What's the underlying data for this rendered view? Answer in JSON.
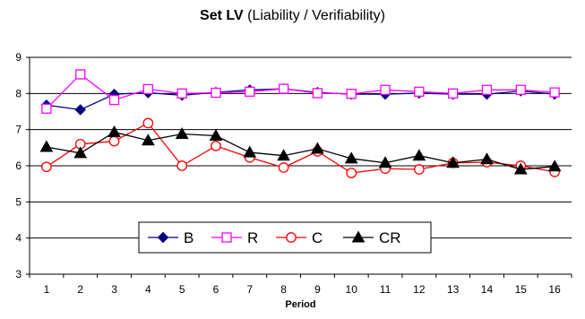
{
  "chart_data": {
    "type": "line",
    "title": "Set LV",
    "subtitle": "(Liability / Verifiability)",
    "xlabel": "Period",
    "ylabel": "",
    "x": [
      1,
      2,
      3,
      4,
      5,
      6,
      7,
      8,
      9,
      10,
      11,
      12,
      13,
      14,
      15,
      16
    ],
    "ylim": [
      3,
      9
    ],
    "yticks": [
      3,
      4,
      5,
      6,
      7,
      8,
      9
    ],
    "grid": "horizontal",
    "legend_position": "bottom-center",
    "series": [
      {
        "name": "B",
        "color": "#000080",
        "marker": "diamond-filled",
        "values": [
          7.68,
          7.55,
          7.98,
          8.02,
          7.95,
          8.03,
          8.1,
          8.13,
          8.03,
          7.98,
          7.98,
          8.01,
          7.98,
          7.98,
          8.07,
          7.98
        ]
      },
      {
        "name": "R",
        "color": "#ff00ff",
        "marker": "square-open",
        "values": [
          7.58,
          8.53,
          7.82,
          8.12,
          8.0,
          8.02,
          8.05,
          8.13,
          8.01,
          7.99,
          8.1,
          8.05,
          8.0,
          8.1,
          8.1,
          8.03
        ]
      },
      {
        "name": "C",
        "color": "#ff0000",
        "marker": "circle-open",
        "values": [
          5.97,
          6.6,
          6.68,
          7.18,
          6.0,
          6.55,
          6.23,
          5.95,
          6.4,
          5.8,
          5.92,
          5.9,
          6.08,
          6.1,
          6.0,
          5.83
        ]
      },
      {
        "name": "CR",
        "color": "#000000",
        "marker": "triangle-filled",
        "values": [
          6.52,
          6.35,
          6.93,
          6.7,
          6.88,
          6.83,
          6.37,
          6.28,
          6.47,
          6.2,
          6.08,
          6.28,
          6.08,
          6.18,
          5.9,
          5.98
        ]
      }
    ]
  }
}
